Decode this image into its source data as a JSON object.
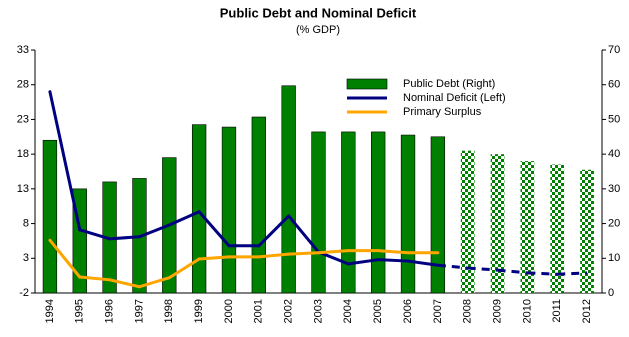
{
  "chart_data": {
    "type": "bar-line",
    "title": "Public Debt and Nominal Deficit",
    "subtitle": "(% GDP)",
    "categories": [
      "1994",
      "1995",
      "1996",
      "1997",
      "1998",
      "1999",
      "2000",
      "2001",
      "2002",
      "2003",
      "2004",
      "2005",
      "2006",
      "2007",
      "2008",
      "2009",
      "2010",
      "2011",
      "2012"
    ],
    "ylim": [
      -2,
      33
    ],
    "yticks": [
      -2,
      3,
      8,
      13,
      18,
      23,
      28,
      33
    ],
    "y2lim": [
      0,
      70
    ],
    "y2ticks": [
      0,
      10,
      20,
      30,
      40,
      50,
      60,
      70
    ],
    "legend": "top-right",
    "series": [
      {
        "name": "Public Debt (Right)",
        "type": "bar",
        "axis": "y2",
        "color": "#008000",
        "checkered_from": "2008",
        "values": [
          44,
          30,
          32,
          33,
          39,
          48.5,
          47.8,
          50.7,
          59.7,
          46.4,
          46.4,
          46.4,
          45.5,
          45,
          41,
          40,
          38,
          37,
          35.5
        ]
      },
      {
        "name": "Nominal Deficit (Left)",
        "type": "line",
        "axis": "y",
        "color": "#000080",
        "dashed_from": "2007",
        "values": [
          27.0,
          7.1,
          5.8,
          6.1,
          7.8,
          9.7,
          4.8,
          4.8,
          9.1,
          3.9,
          2.2,
          2.8,
          2.6,
          2.0,
          1.6,
          1.3,
          0.9,
          0.7,
          0.9
        ]
      },
      {
        "name": "Primary Surplus",
        "type": "line",
        "axis": "y",
        "color": "#ffa500",
        "values": [
          5.6,
          0.3,
          -0.1,
          -1.1,
          0.2,
          2.9,
          3.2,
          3.2,
          3.6,
          3.8,
          4.1,
          4.1,
          3.8,
          3.8,
          null,
          null,
          null,
          null,
          null
        ]
      }
    ]
  }
}
